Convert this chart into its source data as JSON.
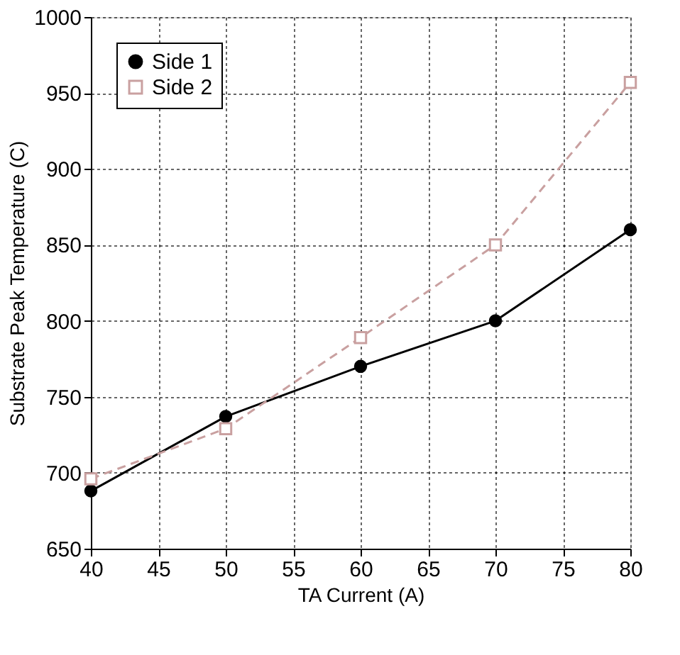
{
  "chart_data": {
    "type": "line",
    "xlabel": "TA Current (A)",
    "ylabel": "Substrate Peak Temperature (C)",
    "x": [
      40,
      50,
      60,
      70,
      80
    ],
    "xlim": [
      40,
      80
    ],
    "xticks": [
      40,
      45,
      50,
      55,
      60,
      65,
      70,
      75,
      80
    ],
    "ylim": [
      650,
      1000
    ],
    "yticks": [
      650,
      700,
      750,
      800,
      850,
      900,
      950,
      1000
    ],
    "grid": true,
    "legend": "top left",
    "series": [
      {
        "name": "Side 1",
        "color": "#000000",
        "values": [
          688,
          737,
          770,
          800,
          860
        ],
        "marker": "circle",
        "line_style": "solid"
      },
      {
        "name": "Side 2",
        "color": "#c9a0a0",
        "values": [
          696,
          729,
          789,
          850,
          957
        ],
        "marker": "square",
        "line_style": "dashed"
      }
    ]
  }
}
